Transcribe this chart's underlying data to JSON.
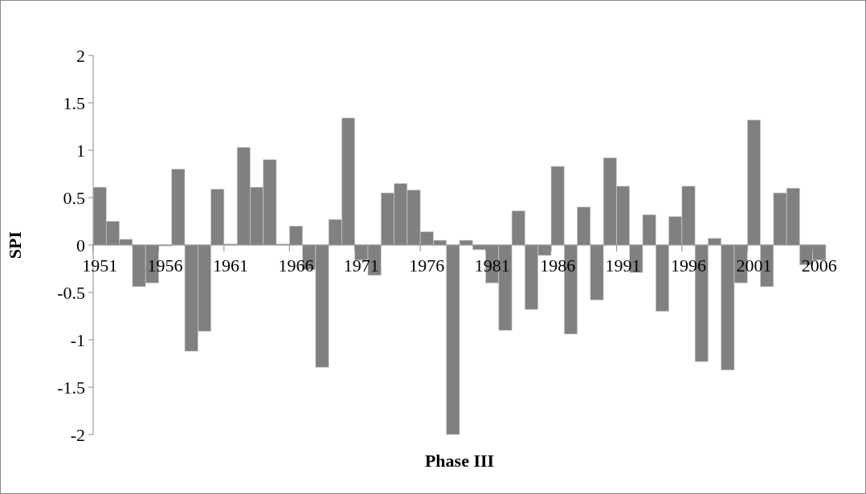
{
  "chart_data": {
    "type": "bar",
    "xlabel": "Phase III",
    "ylabel": "SPI",
    "categories": [
      "1951",
      null,
      null,
      null,
      null,
      "1956",
      null,
      null,
      null,
      null,
      "1961",
      null,
      null,
      null,
      null,
      "1966",
      null,
      null,
      null,
      null,
      "1971",
      null,
      null,
      null,
      null,
      "1976",
      null,
      null,
      null,
      null,
      "1981",
      null,
      null,
      null,
      null,
      "1986",
      null,
      null,
      null,
      null,
      "1991",
      null,
      null,
      null,
      null,
      "1996",
      null,
      null,
      null,
      null,
      "2001",
      null,
      null,
      null,
      null,
      "2006"
    ],
    "values": [
      0.61,
      0.25,
      0.06,
      -0.44,
      -0.4,
      -0.01,
      0.8,
      -1.12,
      -0.91,
      0.59,
      0.01,
      1.03,
      0.61,
      0.9,
      0.01,
      0.2,
      -0.26,
      -1.29,
      0.27,
      1.34,
      -0.16,
      -0.32,
      0.55,
      0.65,
      0.58,
      0.14,
      0.05,
      -2.0,
      0.05,
      -0.05,
      -0.4,
      -0.9,
      0.36,
      -0.68,
      -0.11,
      0.83,
      -0.94,
      0.4,
      -0.58,
      0.92,
      0.62,
      -0.29,
      0.32,
      -0.7,
      0.3,
      0.62,
      -1.23,
      0.07,
      -1.32,
      -0.4,
      1.32,
      -0.44,
      0.55,
      0.6,
      -0.21,
      -0.16
    ],
    "color": "#808080",
    "ylim": [
      -2,
      2
    ],
    "yticks": [
      -2,
      -1.5,
      -1,
      -0.5,
      0,
      0.5,
      1,
      1.5,
      2
    ]
  }
}
